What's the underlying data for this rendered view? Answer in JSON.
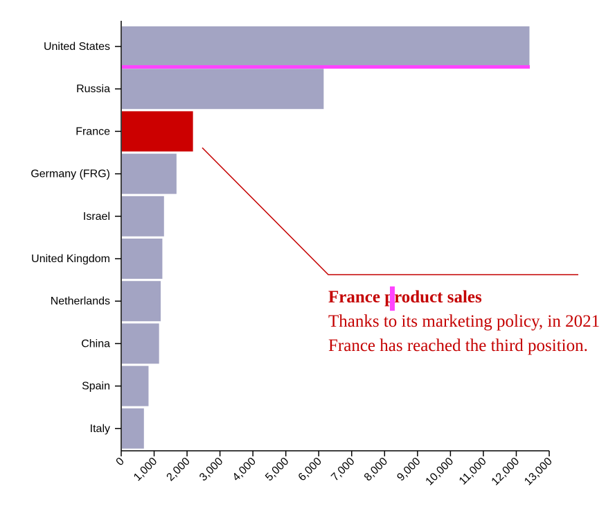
{
  "chart_data": {
    "type": "bar",
    "orientation": "horizontal",
    "categories": [
      "United States",
      "Russia",
      "France",
      "Germany (FRG)",
      "Israel",
      "United Kingdom",
      "Netherlands",
      "China",
      "Spain",
      "Italy"
    ],
    "values": [
      12400,
      6150,
      2180,
      1680,
      1300,
      1250,
      1200,
      1150,
      830,
      690
    ],
    "xlim": [
      0,
      13000
    ],
    "x_ticks": [
      "0",
      "1,000",
      "2,000",
      "3,000",
      "4,000",
      "5,000",
      "6,000",
      "7,000",
      "8,000",
      "9,000",
      "10,000",
      "11,000",
      "12,000",
      "13,000"
    ],
    "highlight_category": "France",
    "colors": {
      "bar": "#a3a4c3",
      "highlight": "#cc0000",
      "annotation": "#c40000",
      "marker": "#ff44ff"
    },
    "annotation": {
      "title": "France product sales",
      "body": "Thanks to its marketing policy, in 2021 France has reached the third position."
    }
  }
}
